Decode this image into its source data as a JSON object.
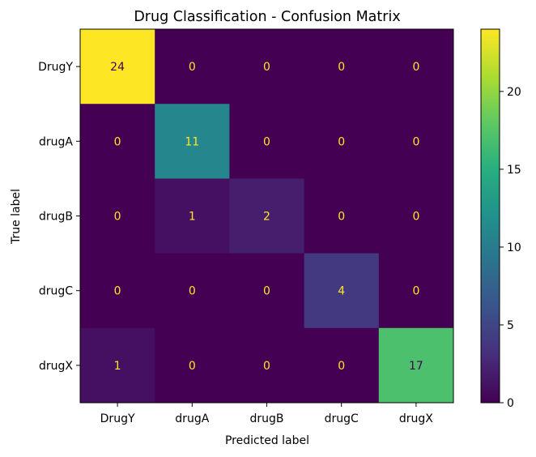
{
  "chart_data": {
    "type": "heatmap",
    "title": "Drug Classification - Confusion Matrix",
    "xlabel": "Predicted label",
    "ylabel": "True label",
    "x_categories": [
      "DrugY",
      "drugA",
      "drugB",
      "drugC",
      "drugX"
    ],
    "y_categories": [
      "DrugY",
      "drugA",
      "drugB",
      "drugC",
      "drugX"
    ],
    "values": [
      [
        24,
        0,
        0,
        0,
        0
      ],
      [
        0,
        11,
        0,
        0,
        0
      ],
      [
        0,
        1,
        2,
        0,
        0
      ],
      [
        0,
        0,
        0,
        4,
        0
      ],
      [
        1,
        0,
        0,
        0,
        17
      ]
    ],
    "colormap": "viridis",
    "color_range": [
      0,
      24
    ],
    "colorbar_ticks": [
      0,
      5,
      10,
      15,
      20
    ],
    "text_color_low": "#fde725",
    "text_color_high": "#440154"
  }
}
